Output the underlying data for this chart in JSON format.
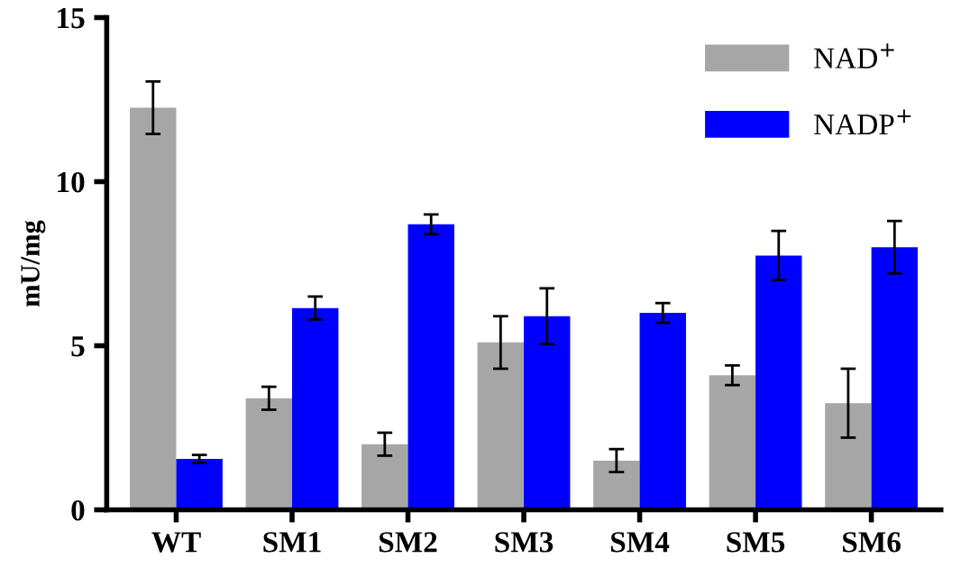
{
  "chart_data": {
    "type": "bar",
    "ylabel": "mU/mg",
    "categories": [
      "WT",
      "SM1",
      "SM2",
      "SM3",
      "SM4",
      "SM5",
      "SM6"
    ],
    "series": [
      {
        "name": "NAD$^{+}$",
        "color": "#a6a6a6",
        "values": [
          12.25,
          3.4,
          2.0,
          5.1,
          1.5,
          4.1,
          3.25
        ],
        "errors": [
          0.8,
          0.35,
          0.35,
          0.8,
          0.35,
          0.3,
          1.05
        ]
      },
      {
        "name": "NADP$^{+}$",
        "color": "#0000ff",
        "values": [
          1.55,
          6.15,
          8.7,
          5.9,
          6.0,
          7.75,
          8.0
        ],
        "errors": [
          0.12,
          0.35,
          0.3,
          0.85,
          0.3,
          0.75,
          0.8
        ]
      }
    ],
    "ylim": [
      0,
      15
    ],
    "yticks": [
      0,
      5,
      10,
      15
    ],
    "grid": false,
    "legend": "top right"
  }
}
